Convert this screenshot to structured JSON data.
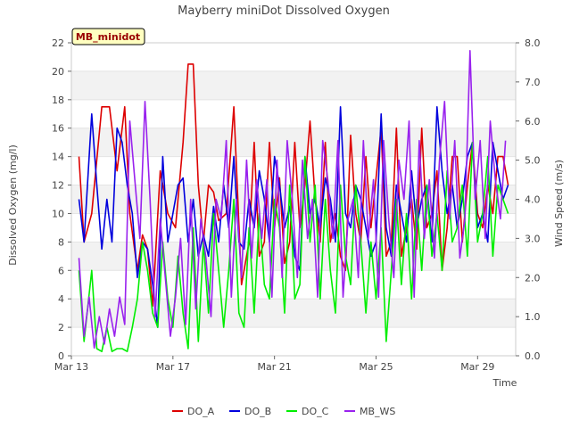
{
  "chart_data": {
    "type": "line",
    "title": "Mayberry miniDot Dissolved Oxygen",
    "annotation": "MB_minidot",
    "xlabel": "Time",
    "ylabel": "Dissolved Oxygen (mg/l)",
    "y2label": "Wind Speed (m/s)",
    "x_ticks": [
      "Mar 13",
      "Mar 17",
      "Mar 21",
      "Mar 25",
      "Mar 29"
    ],
    "y_ticks": [
      "0",
      "2",
      "4",
      "6",
      "8",
      "10",
      "12",
      "14",
      "16",
      "18",
      "20",
      "22"
    ],
    "y2_ticks": [
      "0.0",
      "1.0",
      "2.0",
      "3.0",
      "4.0",
      "5.0",
      "6.0",
      "7.0",
      "8.0"
    ],
    "xlim_days": [
      13.0,
      30.5
    ],
    "ylim": [
      0,
      22
    ],
    "y2lim": [
      0,
      8
    ],
    "grid": "horizontal bands",
    "legend_placement": "bottom",
    "series": [
      {
        "name": "DO_A",
        "axis": "left",
        "color": "#dd0000",
        "x": [
          13.3,
          13.5,
          13.8,
          14.2,
          14.5,
          14.8,
          15.1,
          15.3,
          15.6,
          15.8,
          16.0,
          16.2,
          16.5,
          16.8,
          17.1,
          17.4,
          17.6,
          17.8,
          18.0,
          18.2,
          18.4,
          18.6,
          18.8,
          19.1,
          19.4,
          19.7,
          20.0,
          20.2,
          20.4,
          20.6,
          20.8,
          21.0,
          21.2,
          21.4,
          21.6,
          21.8,
          22.0,
          22.2,
          22.4,
          22.6,
          22.8,
          23.0,
          23.2,
          23.4,
          23.6,
          23.8,
          24.0,
          24.2,
          24.4,
          24.6,
          24.8,
          25.0,
          25.2,
          25.4,
          25.6,
          25.8,
          26.0,
          26.2,
          26.4,
          26.6,
          26.8,
          27.0,
          27.2,
          27.4,
          27.6,
          27.8,
          28.0,
          28.2,
          28.4,
          28.6,
          28.8,
          29.0,
          29.2,
          29.4,
          29.6,
          29.8,
          30.0,
          30.2
        ],
        "y": [
          14,
          8,
          10,
          17.5,
          17.5,
          13,
          17.5,
          10,
          6,
          8.5,
          7.5,
          3.5,
          13,
          10,
          9,
          15,
          20.5,
          20.5,
          12,
          8,
          12,
          11.5,
          9.5,
          10,
          17.5,
          5,
          8,
          15,
          7,
          8,
          15,
          9,
          12.5,
          6.5,
          8,
          15,
          9,
          12,
          16.5,
          11,
          8,
          15,
          8,
          10,
          7,
          6,
          15.5,
          10,
          8,
          14,
          9,
          12.5,
          16,
          7,
          8,
          16,
          7,
          9,
          11,
          7.5,
          16,
          9,
          10,
          13,
          6,
          9,
          14,
          14,
          8,
          12,
          15,
          10,
          9,
          12,
          10,
          14,
          14,
          12
        ]
      },
      {
        "name": "DO_B",
        "axis": "left",
        "color": "#0000dd",
        "x": [
          13.3,
          13.5,
          13.8,
          14.0,
          14.2,
          14.4,
          14.6,
          14.8,
          15.0,
          15.2,
          15.4,
          15.6,
          15.8,
          16.0,
          16.2,
          16.4,
          16.6,
          16.8,
          17.0,
          17.2,
          17.4,
          17.6,
          17.8,
          18.0,
          18.2,
          18.4,
          18.6,
          18.8,
          19.0,
          19.2,
          19.4,
          19.6,
          19.8,
          20.0,
          20.2,
          20.4,
          20.6,
          20.8,
          21.0,
          21.2,
          21.4,
          21.6,
          21.8,
          22.0,
          22.2,
          22.4,
          22.6,
          22.8,
          23.0,
          23.2,
          23.4,
          23.6,
          23.8,
          24.0,
          24.2,
          24.4,
          24.6,
          24.8,
          25.0,
          25.2,
          25.4,
          25.6,
          25.8,
          26.0,
          26.2,
          26.4,
          26.6,
          26.8,
          27.0,
          27.2,
          27.4,
          27.6,
          27.8,
          28.0,
          28.2,
          28.4,
          28.6,
          28.8,
          29.0,
          29.2,
          29.4,
          29.6,
          29.8,
          30.0,
          30.2
        ],
        "y": [
          11,
          8,
          17,
          12,
          7.5,
          11,
          8,
          16,
          15,
          12,
          10,
          5.5,
          8,
          7.5,
          5,
          2,
          14,
          8,
          10,
          12,
          12.5,
          8,
          11,
          7,
          8.5,
          7,
          10.5,
          8,
          12,
          9,
          14,
          8,
          7.5,
          11,
          9,
          13,
          11,
          8,
          14,
          12,
          9,
          10.5,
          7,
          6,
          14,
          10,
          11,
          9,
          12.5,
          11,
          8,
          17.5,
          10,
          9,
          12,
          11,
          9,
          7,
          8,
          17,
          9,
          7,
          12,
          10,
          8,
          13,
          9,
          11,
          12,
          8,
          17.5,
          13,
          10,
          12,
          9,
          11,
          14,
          15,
          9,
          10,
          8,
          15,
          13,
          11,
          12
        ]
      },
      {
        "name": "DO_C",
        "axis": "left",
        "color": "#00ee00",
        "x": [
          13.3,
          13.5,
          13.8,
          14.0,
          14.2,
          14.4,
          14.6,
          14.8,
          15.0,
          15.2,
          15.4,
          15.6,
          15.8,
          16.0,
          16.2,
          16.4,
          16.6,
          16.8,
          17.0,
          17.2,
          17.4,
          17.6,
          17.8,
          18.0,
          18.2,
          18.4,
          18.6,
          18.8,
          19.0,
          19.2,
          19.4,
          19.6,
          19.8,
          20.0,
          20.2,
          20.4,
          20.6,
          20.8,
          21.0,
          21.2,
          21.4,
          21.6,
          21.8,
          22.0,
          22.2,
          22.4,
          22.6,
          22.8,
          23.0,
          23.2,
          23.4,
          23.6,
          23.8,
          24.0,
          24.2,
          24.4,
          24.6,
          24.8,
          25.0,
          25.2,
          25.4,
          25.6,
          25.8,
          26.0,
          26.2,
          26.4,
          26.6,
          26.8,
          27.0,
          27.2,
          27.4,
          27.6,
          27.8,
          28.0,
          28.2,
          28.4,
          28.6,
          28.8,
          29.0,
          29.2,
          29.4,
          29.6,
          29.8,
          30.0,
          30.2
        ],
        "y": [
          6,
          1,
          6,
          0.5,
          0.3,
          2,
          0.3,
          0.5,
          0.5,
          0.3,
          2,
          4,
          8,
          6,
          3,
          2,
          8,
          4,
          2,
          7,
          3,
          0.5,
          9,
          1,
          8,
          3,
          10,
          6,
          2,
          6,
          11,
          3,
          2,
          9,
          3,
          10,
          5,
          4,
          11,
          9,
          3,
          12,
          4,
          5,
          14,
          8,
          12,
          4,
          11,
          6,
          3,
          12,
          7,
          5,
          12,
          8,
          3,
          8,
          4,
          9,
          1,
          6,
          11,
          5,
          10,
          4,
          11,
          6,
          12,
          7,
          10,
          6,
          13,
          8,
          9,
          12,
          7,
          15,
          8,
          10,
          14,
          7,
          12,
          11,
          10
        ]
      },
      {
        "name": "MB_WS",
        "axis": "right",
        "color": "#9922ee",
        "x": [
          13.3,
          13.5,
          13.7,
          13.9,
          14.1,
          14.3,
          14.5,
          14.7,
          14.9,
          15.1,
          15.3,
          15.5,
          15.7,
          15.9,
          16.1,
          16.3,
          16.5,
          16.7,
          16.9,
          17.1,
          17.3,
          17.5,
          17.7,
          17.9,
          18.1,
          18.3,
          18.5,
          18.7,
          18.9,
          19.1,
          19.3,
          19.5,
          19.7,
          19.9,
          20.1,
          20.3,
          20.5,
          20.7,
          20.9,
          21.1,
          21.3,
          21.5,
          21.7,
          21.9,
          22.1,
          22.3,
          22.5,
          22.7,
          22.9,
          23.1,
          23.3,
          23.5,
          23.7,
          23.9,
          24.1,
          24.3,
          24.5,
          24.7,
          24.9,
          25.1,
          25.3,
          25.5,
          25.7,
          25.9,
          26.1,
          26.3,
          26.5,
          26.7,
          26.9,
          27.1,
          27.3,
          27.5,
          27.7,
          27.9,
          28.1,
          28.3,
          28.5,
          28.7,
          28.9,
          29.1,
          29.3,
          29.5,
          29.7,
          29.9,
          30.1
        ],
        "y": [
          2.5,
          0.5,
          1.5,
          0.2,
          1.0,
          0.3,
          1.2,
          0.5,
          1.5,
          0.8,
          6.0,
          4.5,
          3.0,
          6.5,
          4.0,
          1.0,
          3.5,
          2.0,
          0.5,
          1.5,
          3.0,
          0.8,
          4.0,
          1.2,
          3.5,
          2.5,
          1.0,
          4.0,
          3.5,
          5.5,
          1.5,
          4.0,
          2.0,
          5.0,
          2.5,
          4.5,
          3.0,
          4.5,
          1.5,
          5.0,
          2.0,
          5.5,
          4.0,
          2.0,
          5.0,
          3.0,
          4.0,
          1.5,
          5.5,
          4.5,
          3.0,
          5.5,
          1.5,
          3.5,
          4.0,
          2.0,
          5.5,
          3.0,
          4.5,
          1.5,
          5.5,
          3.5,
          2.0,
          5.0,
          4.0,
          6.0,
          1.5,
          5.5,
          3.0,
          4.5,
          2.5,
          5.0,
          6.5,
          3.5,
          5.5,
          2.5,
          3.5,
          7.8,
          4.0,
          5.5,
          3.0,
          6.0,
          4.5,
          3.5,
          5.5
        ]
      }
    ]
  }
}
